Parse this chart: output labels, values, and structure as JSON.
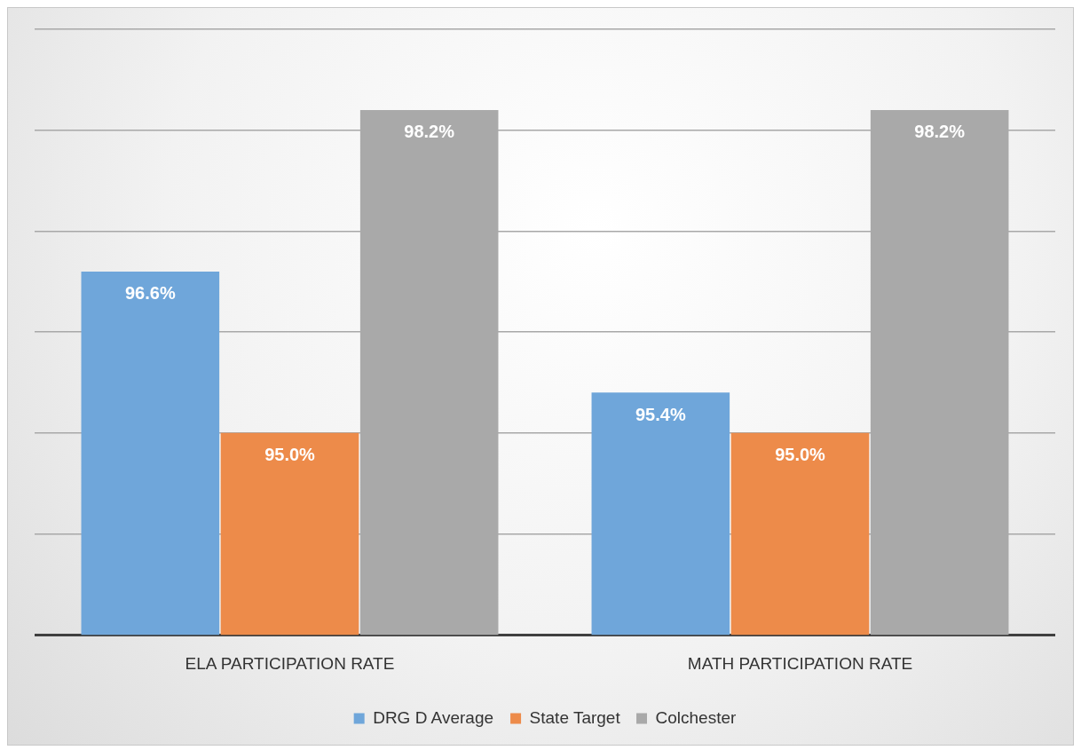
{
  "chart_data": {
    "type": "bar",
    "categories": [
      "ELA PARTICIPATION RATE",
      "MATH PARTICIPATION RATE"
    ],
    "series": [
      {
        "name": "DRG D Average",
        "color": "#6fa6da",
        "values": [
          96.6,
          95.4
        ],
        "value_labels": [
          "96.6%",
          "95.4%"
        ]
      },
      {
        "name": "State Target",
        "color": "#ed8b4a",
        "values": [
          95.0,
          95.0
        ],
        "value_labels": [
          "95.0%",
          "95.0%"
        ]
      },
      {
        "name": "Colchester",
        "color": "#a9a9a9",
        "values": [
          98.2,
          98.2
        ],
        "value_labels": [
          "98.2%",
          "98.2%"
        ]
      }
    ],
    "ylim": [
      93,
      99
    ],
    "yticks": [
      93,
      94,
      95,
      96,
      97,
      98,
      99
    ],
    "tick_labels": "x",
    "grid": "y",
    "legend": "bottom"
  }
}
